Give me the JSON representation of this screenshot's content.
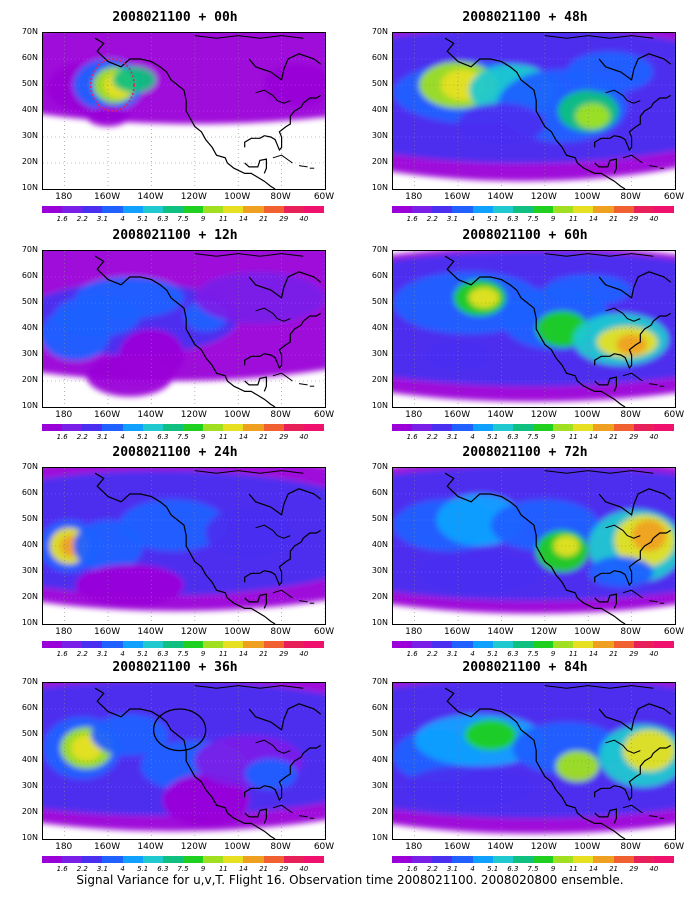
{
  "figure_caption": "Signal Variance for u,v,T. Flight 16. Observation time 2008021100. 2008020800 ensemble.",
  "panels": [
    {
      "title": "2008021100 + 00h"
    },
    {
      "title": "2008021100 + 48h"
    },
    {
      "title": "2008021100 + 12h"
    },
    {
      "title": "2008021100 + 60h"
    },
    {
      "title": "2008021100 + 24h"
    },
    {
      "title": "2008021100 + 72h"
    },
    {
      "title": "2008021100 + 36h"
    },
    {
      "title": "2008021100 + 84h"
    }
  ],
  "axes": {
    "lat_labels": [
      "70N",
      "60N",
      "50N",
      "40N",
      "30N",
      "20N",
      "10N"
    ],
    "lon_labels": [
      "180",
      "160W",
      "140W",
      "120W",
      "100W",
      "80W",
      "60W"
    ]
  },
  "colorbar": {
    "labels": [
      "1.6",
      "2.2",
      "3.1",
      "4",
      "5.1",
      "6.3",
      "7.5",
      "9",
      "11",
      "14",
      "21",
      "29",
      "40"
    ],
    "colors": [
      "#9a00d8",
      "#7a1fe8",
      "#4a2ff0",
      "#2060ff",
      "#10a0ff",
      "#20c8d0",
      "#10c080",
      "#20d020",
      "#a0e020",
      "#e6e020",
      "#f0a020",
      "#f06030",
      "#e8205a",
      "#f0106e"
    ]
  },
  "annotations": {
    "panel_00h": "red dotted ellipse (flight track)",
    "panel_36h": "black circle"
  }
}
